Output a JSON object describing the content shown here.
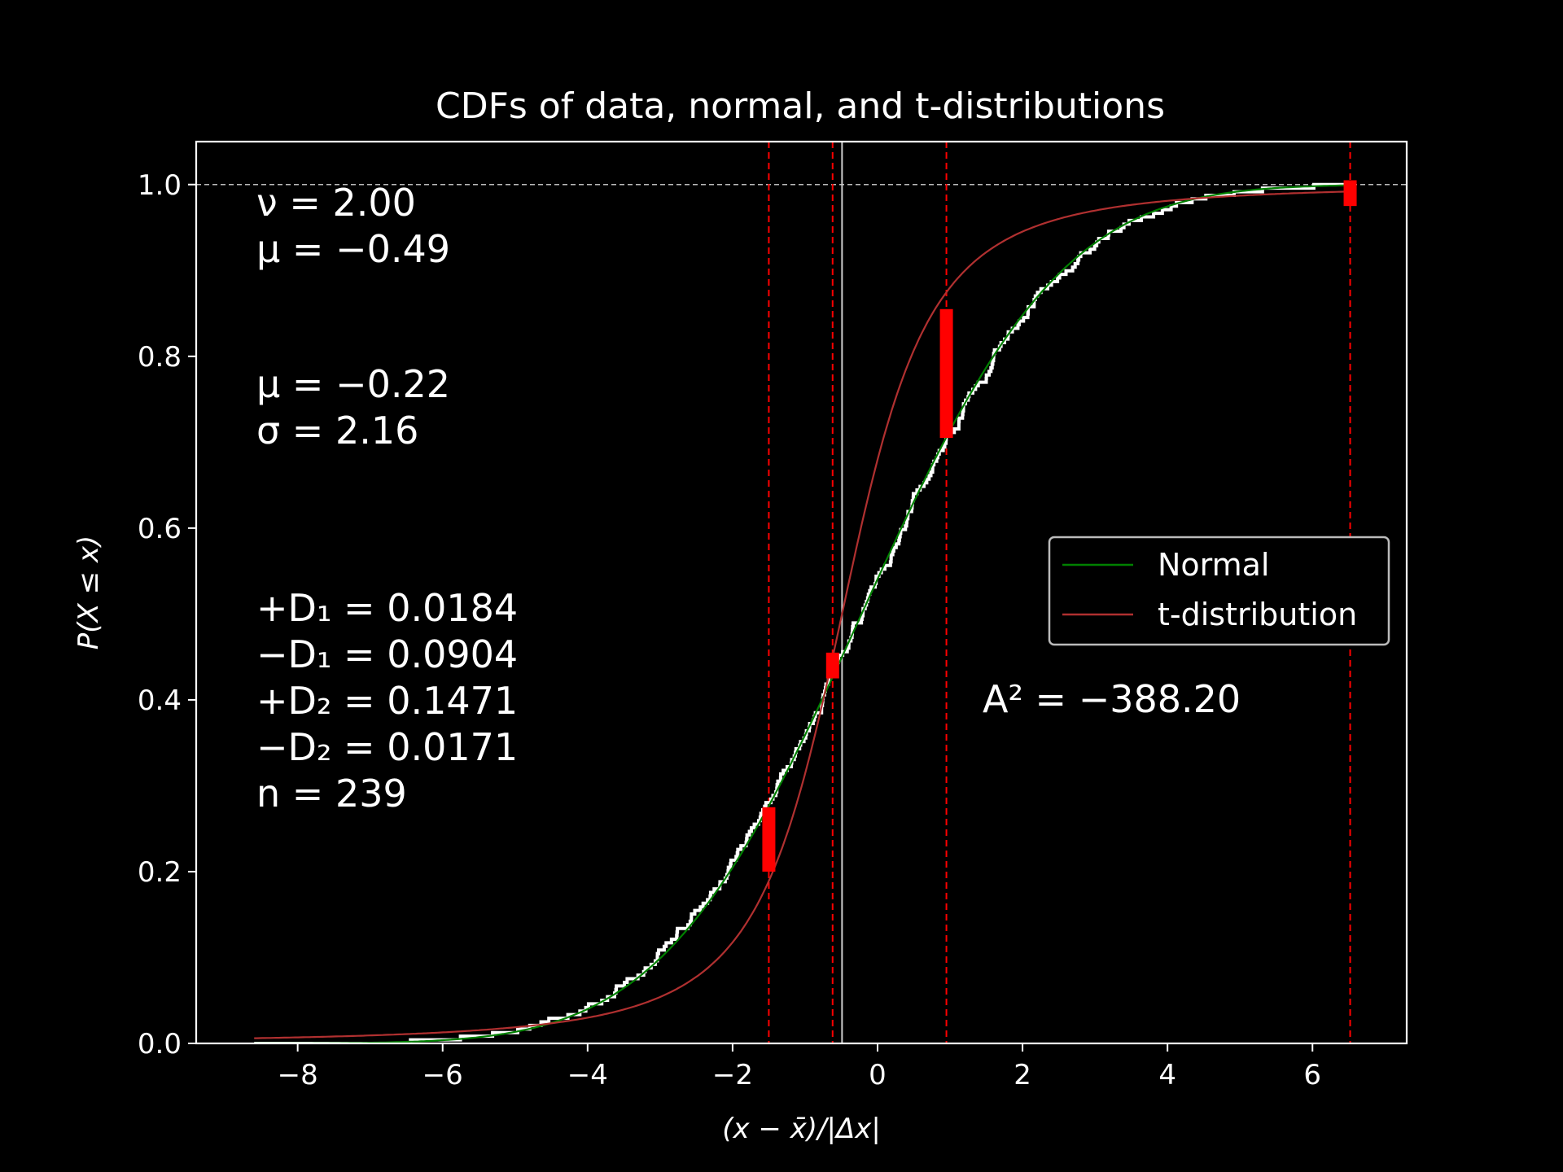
{
  "chart_data": {
    "type": "line",
    "title": "CDFs of data, normal, and t-distributions",
    "xlabel": "(x − x̄)/|Δx|",
    "ylabel": "P(X ≤ x)",
    "xlim": [
      -9.4,
      7.3
    ],
    "ylim": [
      0.0,
      1.05
    ],
    "xticks": [
      -8,
      -6,
      -4,
      -2,
      0,
      2,
      4,
      6
    ],
    "yticks": [
      0.0,
      0.2,
      0.4,
      0.6,
      0.8,
      1.0
    ],
    "xtick_labels": [
      "−8",
      "−6",
      "−4",
      "−2",
      "0",
      "2",
      "4",
      "6"
    ],
    "ytick_labels": [
      "0.0",
      "0.2",
      "0.4",
      "0.6",
      "0.8",
      "1.0"
    ],
    "reference_line_y": 1.0,
    "mean_line_x": -0.49,
    "red_dashed_lines_x": [
      -1.5,
      -0.62,
      0.95,
      6.52
    ],
    "ks_bars": [
      {
        "x": -1.5,
        "y_low": 0.2,
        "y_high": 0.275
      },
      {
        "x": -0.62,
        "y_low": 0.425,
        "y_high": 0.455
      },
      {
        "x": 0.95,
        "y_low": 0.705,
        "y_high": 0.855
      },
      {
        "x": 6.52,
        "y_low": 0.975,
        "y_high": 1.005
      }
    ],
    "series": [
      {
        "name": "Normal",
        "color": "#008000",
        "dist": "normal",
        "mu": -0.22,
        "sigma": 2.16,
        "x_range": [
          -8.6,
          6.5
        ]
      },
      {
        "name": "t-distribution",
        "color": "#b03030",
        "dist": "t",
        "nu": 2.0,
        "mu": -0.49,
        "scale": 0.9,
        "x_range": [
          -8.6,
          6.5
        ]
      },
      {
        "name": "",
        "color": "#ffffff",
        "dist": "empirical",
        "n": 239,
        "x_range": [
          -8.6,
          6.5
        ]
      }
    ],
    "legend_position": "center-right",
    "annotations": {
      "nu": "ν = 2.00",
      "mu_t": "μ = −0.49",
      "mu_n": "μ = −0.22",
      "sigma": "σ = 2.16",
      "d1p": "+D₁ = 0.0184",
      "d1m": "−D₁ = 0.0904",
      "d2p": "+D₂ = 0.1471",
      "d2m": "−D₂ = 0.0171",
      "n": "n = 239",
      "a2": "A² = −388.20"
    }
  }
}
